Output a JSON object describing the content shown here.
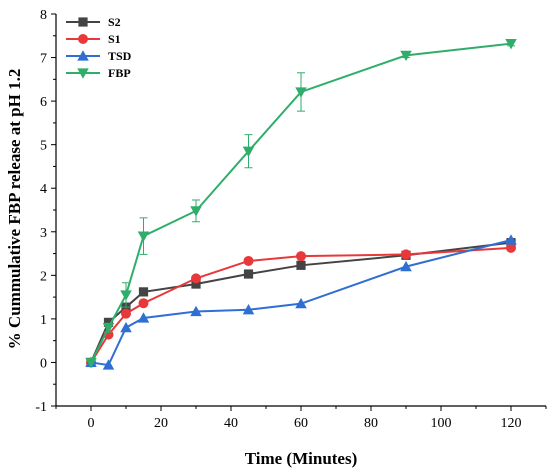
{
  "chart_data": {
    "type": "line",
    "xlabel": "Time (Minutes)",
    "ylabel": "% Cummulative FBP release at pH 1.2",
    "xlim": [
      -10,
      130
    ],
    "ylim": [
      -1,
      8
    ],
    "xticks": [
      0,
      20,
      40,
      60,
      80,
      100,
      120
    ],
    "yticks": [
      -1,
      0,
      1,
      2,
      3,
      4,
      5,
      6,
      7,
      8
    ],
    "legend_position": "top-left",
    "series": [
      {
        "name": "S2",
        "color": "#444444",
        "marker": "square",
        "x": [
          0,
          5,
          10,
          15,
          30,
          45,
          60,
          90,
          120
        ],
        "y": [
          0.0,
          0.92,
          1.27,
          1.62,
          1.8,
          2.03,
          2.23,
          2.46,
          2.75
        ]
      },
      {
        "name": "S1",
        "color": "#e8383a",
        "marker": "circle",
        "x": [
          0,
          5,
          10,
          15,
          30,
          45,
          60,
          90,
          120
        ],
        "y": [
          0.0,
          0.64,
          1.12,
          1.36,
          1.93,
          2.33,
          2.44,
          2.48,
          2.63
        ]
      },
      {
        "name": "TSD",
        "color": "#2f6fd1",
        "marker": "triangle-up",
        "x": [
          0,
          5,
          10,
          15,
          30,
          45,
          60,
          90,
          120
        ],
        "y": [
          0.0,
          -0.06,
          0.8,
          1.02,
          1.17,
          1.21,
          1.35,
          2.2,
          2.81
        ]
      },
      {
        "name": "FBP",
        "color": "#2fae6b",
        "marker": "triangle-down",
        "x": [
          0,
          5,
          10,
          15,
          30,
          45,
          60,
          90,
          120
        ],
        "y": [
          0.0,
          0.8,
          1.55,
          2.9,
          3.48,
          4.85,
          6.21,
          7.05,
          7.32
        ],
        "error": [
          0,
          0.1,
          0.28,
          0.42,
          0.25,
          0.38,
          0.44,
          0.05,
          0.05
        ]
      }
    ]
  }
}
